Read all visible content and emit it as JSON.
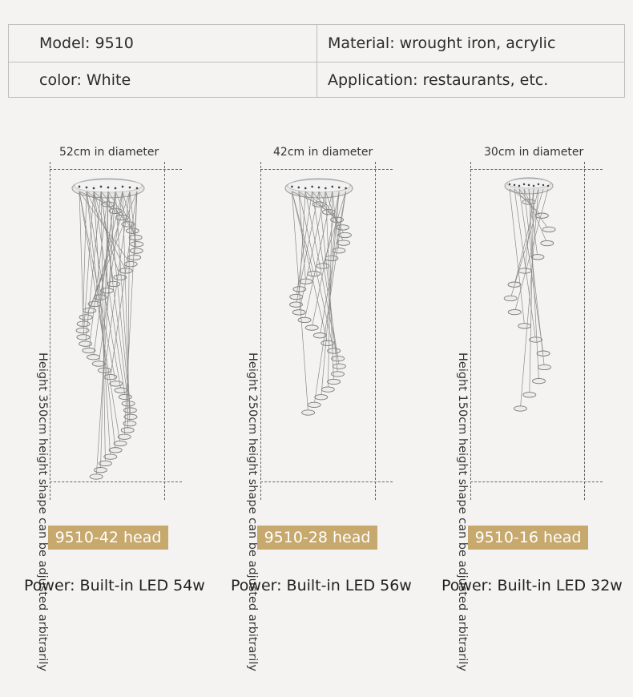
{
  "specs": {
    "model": "Model: 9510",
    "material": "Material: wrought iron, acrylic",
    "color": "color: White",
    "application": "Application: restaurants, etc."
  },
  "variants": [
    {
      "diameter": "52cm in diameter",
      "height": "Height 350cm height shape can be adjusted arbitrarily",
      "badge": "9510-42 head",
      "power": "Power: Built-in LED 54w"
    },
    {
      "diameter": "42cm in diameter",
      "height": "Height 250cm height shape can be adjusted arbitrarily",
      "badge": "9510-28 head",
      "power": "Power: Built-in LED 56w"
    },
    {
      "diameter": "30cm in diameter",
      "height": "Height 150cm height shape can be adjusted arbitrarily",
      "badge": "9510-16 head",
      "power": "Power: Built-in LED 32w"
    }
  ],
  "colors": {
    "badge": "#c7a86d",
    "background": "#f4f3f1",
    "rule": "#bdbdbd"
  }
}
